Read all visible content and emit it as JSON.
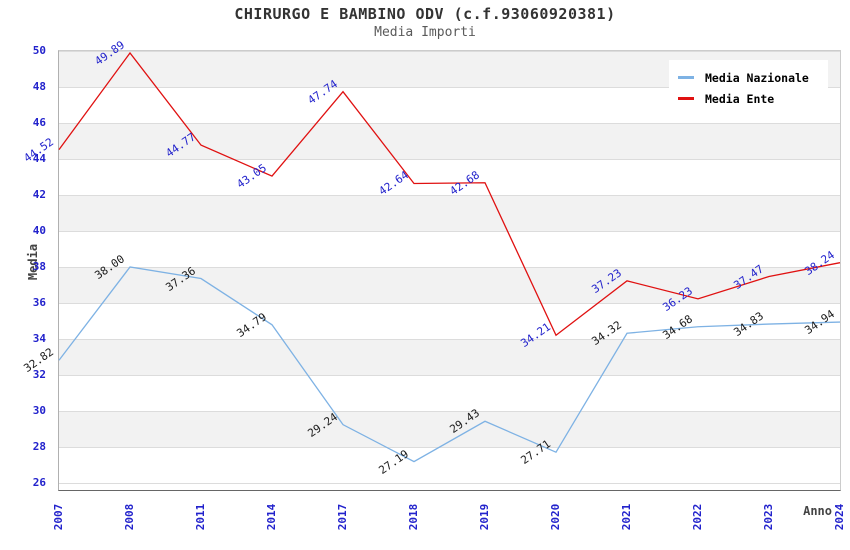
{
  "header": {
    "title": "CHIRURGO E BAMBINO ODV (c.f.93060920381)",
    "subtitle": "Media Importi"
  },
  "legend": {
    "items": [
      {
        "label": "Media Nazionale",
        "color": "#7eb2e4"
      },
      {
        "label": "Media Ente",
        "color": "#e01111"
      }
    ]
  },
  "chart_data": {
    "type": "line",
    "title": "CHIRURGO E BAMBINO ODV (c.f.93060920381)",
    "subtitle": "Media Importi",
    "xlabel": "Anno",
    "ylabel": "Media",
    "categories": [
      "2007",
      "2008",
      "2011",
      "2014",
      "2017",
      "2018",
      "2019",
      "2020",
      "2021",
      "2022",
      "2023",
      "2024"
    ],
    "series": [
      {
        "name": "Media Nazionale",
        "color": "#7eb2e4",
        "label_color": "#1a1a1a",
        "values": [
          32.82,
          38.0,
          37.36,
          34.79,
          29.24,
          27.19,
          29.43,
          27.71,
          34.32,
          34.68,
          34.83,
          34.94
        ]
      },
      {
        "name": "Media Ente",
        "color": "#e01111",
        "label_color": "#2222cc",
        "values": [
          44.52,
          49.89,
          44.77,
          43.05,
          47.74,
          42.64,
          42.68,
          34.21,
          37.23,
          36.23,
          37.47,
          38.24
        ]
      }
    ],
    "ylim": [
      26,
      50
    ],
    "ytick_step": 2,
    "grid": true,
    "banded_background": true,
    "band_color": "#f2f2f2",
    "gridline_color": "#dcdcdc",
    "tick_label_color": "#2222cc",
    "legend_position": "top-right",
    "value_labels": "2 decimals, rotated"
  }
}
